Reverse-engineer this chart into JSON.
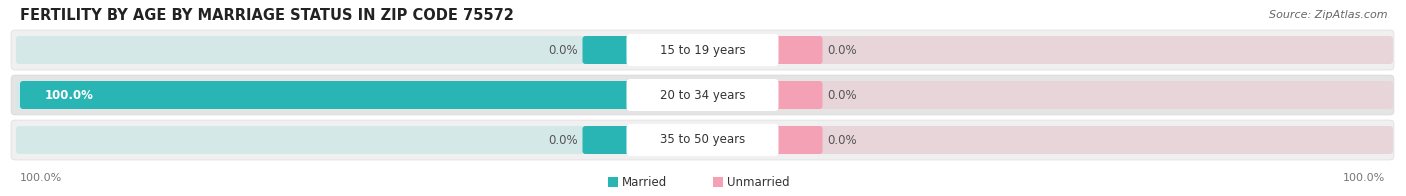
{
  "title": "FERTILITY BY AGE BY MARRIAGE STATUS IN ZIP CODE 75572",
  "source": "Source: ZipAtlas.com",
  "rows": [
    {
      "label": "15 to 19 years",
      "married": 0.0,
      "unmarried": 0.0
    },
    {
      "label": "20 to 34 years",
      "married": 100.0,
      "unmarried": 0.0
    },
    {
      "label": "35 to 50 years",
      "married": 0.0,
      "unmarried": 0.0
    }
  ],
  "married_color": "#2ab5b5",
  "unmarried_color": "#f4a0b5",
  "bar_bg_married": "#dde8e8",
  "bar_bg_unmarried": "#ede0e4",
  "row_bg_odd": "#f0f0f0",
  "row_bg_even": "#e4e4e4",
  "max_val": 100.0,
  "legend_married": "Married",
  "legend_unmarried": "Unmarried",
  "title_fontsize": 10.5,
  "source_fontsize": 8,
  "label_fontsize": 8.5,
  "value_fontsize": 8.5,
  "axis_label_left": "100.0%",
  "axis_label_right": "100.0%"
}
